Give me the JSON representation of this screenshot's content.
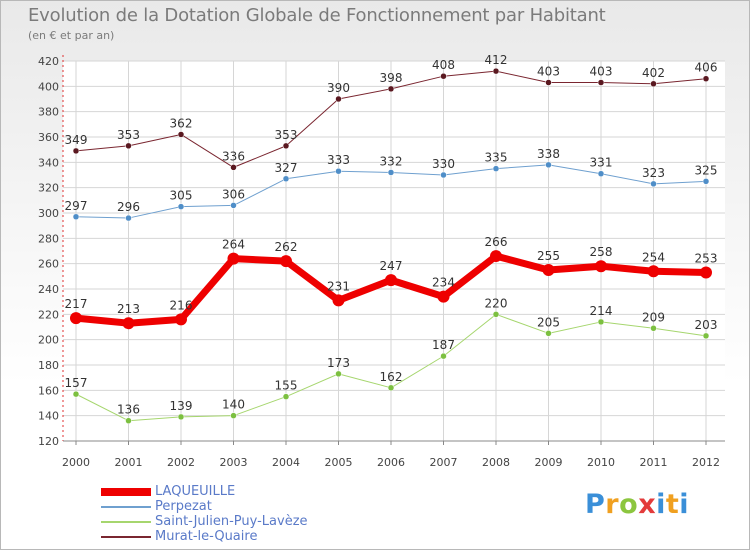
{
  "header": {
    "title": "Evolution de la Dotation Globale de Fonctionnement par Habitant",
    "subtitle": "(en € et par an)"
  },
  "logo": {
    "text": "Proxiti"
  },
  "chart_data": {
    "type": "line",
    "x": [
      "2000",
      "2001",
      "2002",
      "2003",
      "2004",
      "2005",
      "2006",
      "2007",
      "2008",
      "2009",
      "2010",
      "2011",
      "2012"
    ],
    "ylim": [
      120,
      420
    ],
    "yticks": [
      "120",
      "140",
      "160",
      "180",
      "200",
      "220",
      "240",
      "260",
      "280",
      "300",
      "320",
      "340",
      "360",
      "380",
      "400",
      "420"
    ],
    "grid": true,
    "legend_position": "bottom-left",
    "series": [
      {
        "name": "Murat-le-Quaire",
        "color": "#7a2630",
        "marker": "#5a1820",
        "width": 1,
        "values": [
          349,
          353,
          362,
          336,
          353,
          390,
          398,
          408,
          412,
          403,
          403,
          402,
          406
        ]
      },
      {
        "name": "Perpezat",
        "color": "#6fa0cf",
        "marker": "#4f8ec8",
        "width": 1,
        "values": [
          297,
          296,
          305,
          306,
          327,
          333,
          332,
          330,
          335,
          338,
          331,
          323,
          325
        ]
      },
      {
        "name": "Saint-Julien-Puy-Lavèze",
        "color": "#a6d66e",
        "marker": "#7cc040",
        "width": 1,
        "values": [
          157,
          136,
          139,
          140,
          155,
          173,
          162,
          187,
          220,
          205,
          214,
          209,
          203
        ]
      },
      {
        "name": "LAQUEUILLE",
        "color": "#ee0000",
        "marker": "#ee0000",
        "width": 7,
        "values": [
          217,
          213,
          216,
          264,
          262,
          231,
          247,
          234,
          266,
          255,
          258,
          254,
          253
        ]
      }
    ],
    "legend": [
      {
        "name": "LAQUEUILLE",
        "color": "#ee0000",
        "width": 8
      },
      {
        "name": "Perpezat",
        "color": "#6fa0cf",
        "width": 2
      },
      {
        "name": "Saint-Julien-Puy-Lavèze",
        "color": "#a6d66e",
        "width": 2
      },
      {
        "name": "Murat-le-Quaire",
        "color": "#7a2630",
        "width": 2
      }
    ]
  }
}
